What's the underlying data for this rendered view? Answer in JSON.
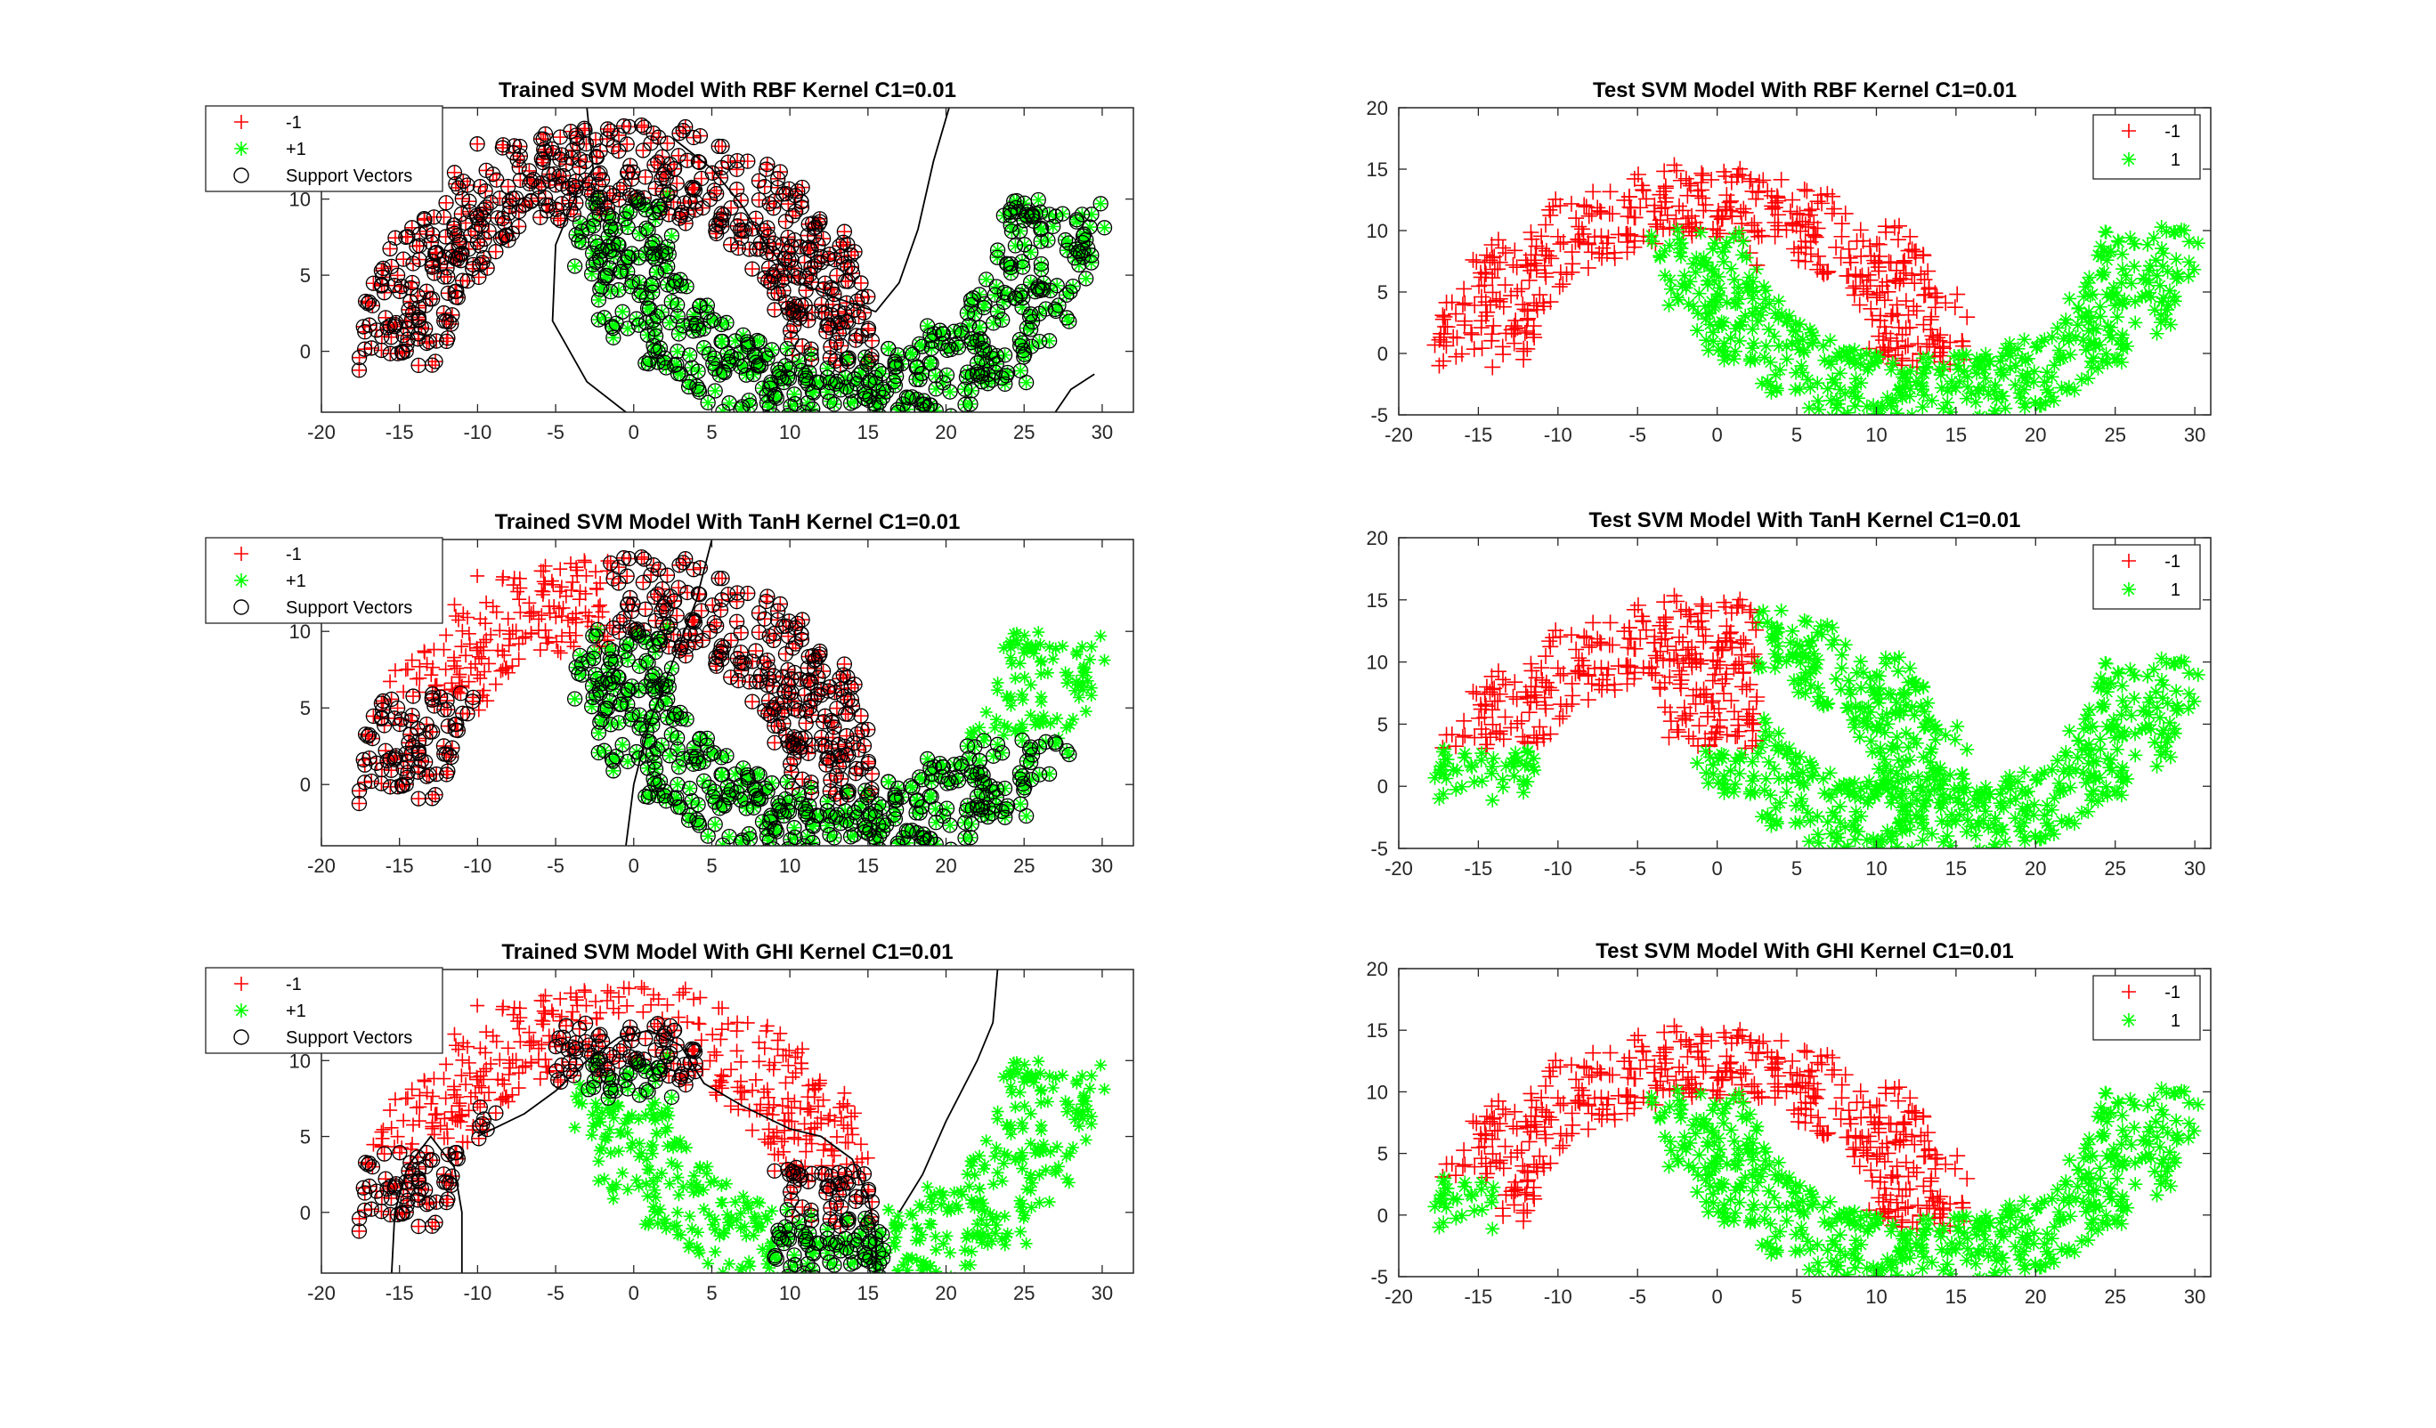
{
  "figure": {
    "colors": {
      "neg": "#ff0000",
      "pos": "#00ff00",
      "sv": "#000000",
      "axis": "#262626",
      "boundary": "#000000"
    }
  },
  "chart_data": [
    {
      "type": "scatter",
      "id": "train-rbf",
      "title": "Trained SVM Model With RBF Kernel C1=0.01",
      "xlim": [
        -20,
        32
      ],
      "ylim": [
        -4,
        16
      ],
      "xticks": [
        -20,
        -15,
        -10,
        -5,
        0,
        5,
        10,
        15,
        20,
        25,
        30
      ],
      "yticks": [
        0,
        5,
        10
      ],
      "legend": {
        "placement": "top-left",
        "entries": [
          "-1",
          "+1",
          "Support Vectors"
        ]
      },
      "support_vectors": "neg_and_pos",
      "boundaries": [
        [
          [
            -3.0,
            16
          ],
          [
            -2.6,
            12
          ],
          [
            -3.6,
            10.5
          ],
          [
            -5,
            7
          ],
          [
            -5.2,
            2
          ],
          [
            -3,
            -2
          ],
          [
            -0.5,
            -4
          ]
        ],
        [
          [
            2.5,
            14
          ],
          [
            5,
            12
          ],
          [
            7,
            9.5
          ],
          [
            8.5,
            7
          ],
          [
            10.5,
            4.5
          ],
          [
            13,
            3.5
          ],
          [
            15.5,
            2.6
          ],
          [
            17,
            4.5
          ],
          [
            18.2,
            8
          ],
          [
            19.2,
            12.5
          ],
          [
            20.2,
            16
          ]
        ],
        [
          [
            27,
            -4
          ],
          [
            28,
            -2.5
          ],
          [
            29.5,
            -1.5
          ]
        ]
      ]
    },
    {
      "type": "scatter",
      "id": "test-rbf",
      "title": "Test SVM Model With RBF Kernel C1=0.01",
      "xlim": [
        -20,
        31
      ],
      "ylim": [
        -5,
        20
      ],
      "xticks": [
        -20,
        -15,
        -10,
        -5,
        0,
        5,
        10,
        15,
        20,
        25,
        30
      ],
      "yticks": [
        -5,
        0,
        5,
        10,
        15,
        20
      ],
      "legend": {
        "placement": "top-right",
        "entries": [
          "-1",
          "1"
        ]
      },
      "split": "rbf"
    },
    {
      "type": "scatter",
      "id": "train-tanh",
      "title": "Trained SVM Model With TanH Kernel C1=0.01",
      "xlim": [
        -20,
        32
      ],
      "ylim": [
        -4,
        16
      ],
      "xticks": [
        -20,
        -15,
        -10,
        -5,
        0,
        5,
        10,
        15,
        20,
        25,
        30
      ],
      "yticks": [
        0,
        5,
        10
      ],
      "legend": {
        "placement": "top-left",
        "entries": [
          "-1",
          "+1",
          "Support Vectors"
        ]
      },
      "support_vectors": "tanh",
      "boundaries": [
        [
          [
            -0.5,
            -4
          ],
          [
            0,
            0
          ],
          [
            1,
            4
          ],
          [
            2.5,
            8
          ],
          [
            4,
            12
          ],
          [
            5,
            16
          ]
        ]
      ]
    },
    {
      "type": "scatter",
      "id": "test-tanh",
      "title": "Test SVM Model With TanH Kernel C1=0.01",
      "xlim": [
        -20,
        31
      ],
      "ylim": [
        -5,
        20
      ],
      "xticks": [
        -20,
        -15,
        -10,
        -5,
        0,
        5,
        10,
        15,
        20,
        25,
        30
      ],
      "yticks": [
        -5,
        0,
        5,
        10,
        15,
        20
      ],
      "legend": {
        "placement": "top-right",
        "entries": [
          "-1",
          "1"
        ]
      },
      "split": "tanh"
    },
    {
      "type": "scatter",
      "id": "train-ghi",
      "title": "Trained SVM Model With GHI Kernel C1=0.01",
      "xlim": [
        -20,
        32
      ],
      "ylim": [
        -4,
        16
      ],
      "xticks": [
        -20,
        -15,
        -10,
        -5,
        0,
        5,
        10,
        15,
        20,
        25,
        30
      ],
      "yticks": [
        0,
        5,
        10
      ],
      "legend": {
        "placement": "top-left",
        "entries": [
          "-1",
          "+1",
          "Support Vectors"
        ]
      },
      "support_vectors": "ghi",
      "boundaries": [
        [
          [
            -15.5,
            -4
          ],
          [
            -15.3,
            0
          ],
          [
            -14.5,
            3
          ],
          [
            -13,
            5
          ],
          [
            -11.5,
            3
          ],
          [
            -11,
            0
          ],
          [
            -11,
            -4
          ]
        ],
        [
          [
            -10,
            5
          ],
          [
            -7,
            6.5
          ],
          [
            -5,
            8
          ],
          [
            -3,
            10
          ],
          [
            -1,
            11.5
          ],
          [
            1,
            12
          ],
          [
            3,
            11
          ],
          [
            4.5,
            8.5
          ],
          [
            7,
            7
          ],
          [
            10,
            5.5
          ],
          [
            12,
            5
          ],
          [
            14,
            3.5
          ],
          [
            15,
            1
          ],
          [
            15.5,
            -1.5
          ],
          [
            15.5,
            -4
          ]
        ],
        [
          [
            17,
            0
          ],
          [
            18.5,
            2.5
          ],
          [
            20,
            6
          ],
          [
            22,
            10
          ],
          [
            23,
            12.5
          ],
          [
            23.3,
            16
          ]
        ]
      ]
    },
    {
      "type": "scatter",
      "id": "test-ghi",
      "title": "Test SVM Model With GHI Kernel C1=0.01",
      "xlim": [
        -20,
        31
      ],
      "ylim": [
        -5,
        20
      ],
      "xticks": [
        -20,
        -15,
        -10,
        -5,
        0,
        5,
        10,
        15,
        20,
        25,
        30
      ],
      "yticks": [
        -5,
        0,
        5,
        10,
        15,
        20
      ],
      "legend": {
        "placement": "top-right",
        "entries": [
          "-1",
          "1"
        ]
      },
      "split": "ghi"
    }
  ]
}
